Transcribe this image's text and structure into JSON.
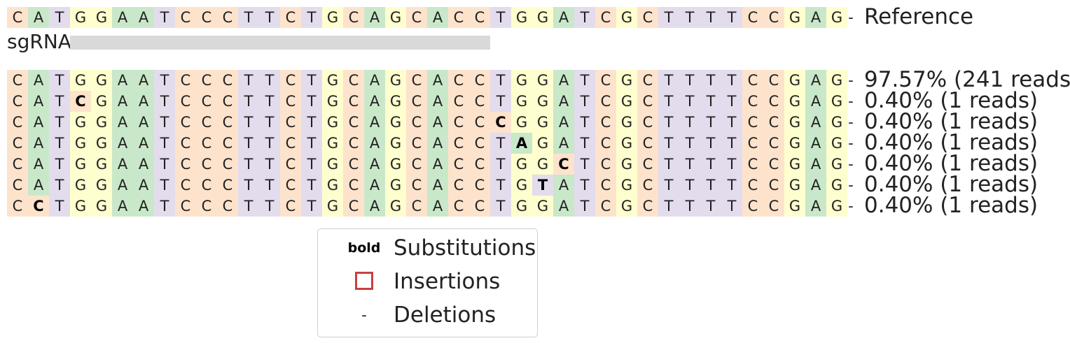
{
  "colors": {
    "A": "#c9e8ca",
    "C": "#fde3cc",
    "G": "#fefecf",
    "T": "#e3dced",
    "insertion_box": "#c94040",
    "sgrna_bar": "#d9d9d9"
  },
  "reference": {
    "sequence": "CATGGAATCCCTTCTGCAGCACCTGGATCGCTTTTCCGAG",
    "gap": "-",
    "label": "Reference"
  },
  "sgrna": {
    "label": "sgRNA",
    "start_index": 3,
    "end_index": 23
  },
  "alleles": [
    {
      "sequence": "CATGGAATCCCTTCTGCAGCACCTGGATCGCTTTTCCGAG",
      "gap": "-",
      "label": "97.57% (241 reads)",
      "percent": 97.57,
      "reads": 241,
      "substitutions": []
    },
    {
      "sequence": "CATCGAATCCCTTCTGCAGCACCTGGATCGCTTTTCCGAG",
      "gap": "-",
      "label": "0.40% (1 reads)",
      "percent": 0.4,
      "reads": 1,
      "substitutions": [
        3
      ]
    },
    {
      "sequence": "CATGGAATCCCTTCTGCAGCACCCGGATCGCTTTTCCGAG",
      "gap": "-",
      "label": "0.40% (1 reads)",
      "percent": 0.4,
      "reads": 1,
      "substitutions": [
        23
      ]
    },
    {
      "sequence": "CATGGAATCCCTTCTGCAGCACCTAGATCGCTTTTCCGAG",
      "gap": "-",
      "label": "0.40% (1 reads)",
      "percent": 0.4,
      "reads": 1,
      "substitutions": [
        24
      ]
    },
    {
      "sequence": "CATGGAATCCCTTCTGCAGCACCTGGCTCGCTTTTCCGAG",
      "gap": "-",
      "label": "0.40% (1 reads)",
      "percent": 0.4,
      "reads": 1,
      "substitutions": [
        26
      ]
    },
    {
      "sequence": "CATGGAATCCCTTCTGCAGCACCTGTATCGCTTTTCCGAG",
      "gap": "-",
      "label": "0.40% (1 reads)",
      "percent": 0.4,
      "reads": 1,
      "substitutions": [
        25
      ]
    },
    {
      "sequence": "CCTGGAATCCCTTCTGCAGCACCTGGATCGCTTTTCCGAG",
      "gap": "-",
      "label": "0.40% (1 reads)",
      "percent": 0.4,
      "reads": 1,
      "substitutions": [
        1
      ]
    }
  ],
  "legend": {
    "items": [
      {
        "symbol": "bold",
        "text": "Substitutions"
      },
      {
        "symbol": "",
        "text": "Insertions"
      },
      {
        "symbol": "-",
        "text": "Deletions"
      }
    ]
  }
}
